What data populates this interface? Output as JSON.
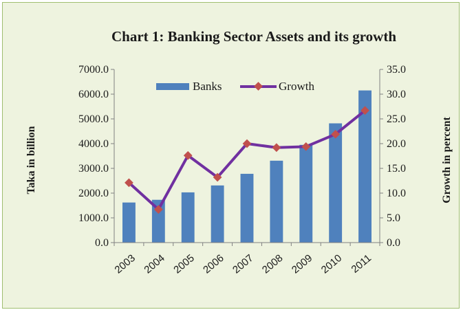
{
  "chart_data": {
    "type": "bar",
    "title": "Chart 1: Banking Sector Assets and its growth",
    "categories": [
      "2003",
      "2004",
      "2005",
      "2006",
      "2007",
      "2008",
      "2009",
      "2010",
      "2011"
    ],
    "series": [
      {
        "name": "Banks",
        "type": "bar",
        "axis": "left",
        "color": "#4f81bd",
        "values": [
          1620,
          1730,
          2030,
          2310,
          2780,
          3310,
          3950,
          4820,
          6150
        ]
      },
      {
        "name": "Growth",
        "type": "line",
        "axis": "right",
        "color": "#7030a0",
        "marker_color": "#c0504d",
        "values": [
          12.1,
          6.7,
          17.6,
          13.2,
          20.0,
          19.2,
          19.4,
          21.9,
          26.7
        ]
      }
    ],
    "ylabel": "Taka in billion",
    "y2label": "Growth in percent",
    "ylim": [
      0,
      7000
    ],
    "y2lim": [
      0,
      35
    ],
    "yticks": [
      "0.0",
      "1000.0",
      "2000.0",
      "3000.0",
      "4000.0",
      "5000.0",
      "6000.0",
      "7000.0"
    ],
    "y2ticks": [
      "0.0",
      "5.0",
      "10.0",
      "15.0",
      "20.0",
      "25.0",
      "30.0",
      "35.0"
    ],
    "grid": false,
    "legend_position": "top-center"
  }
}
